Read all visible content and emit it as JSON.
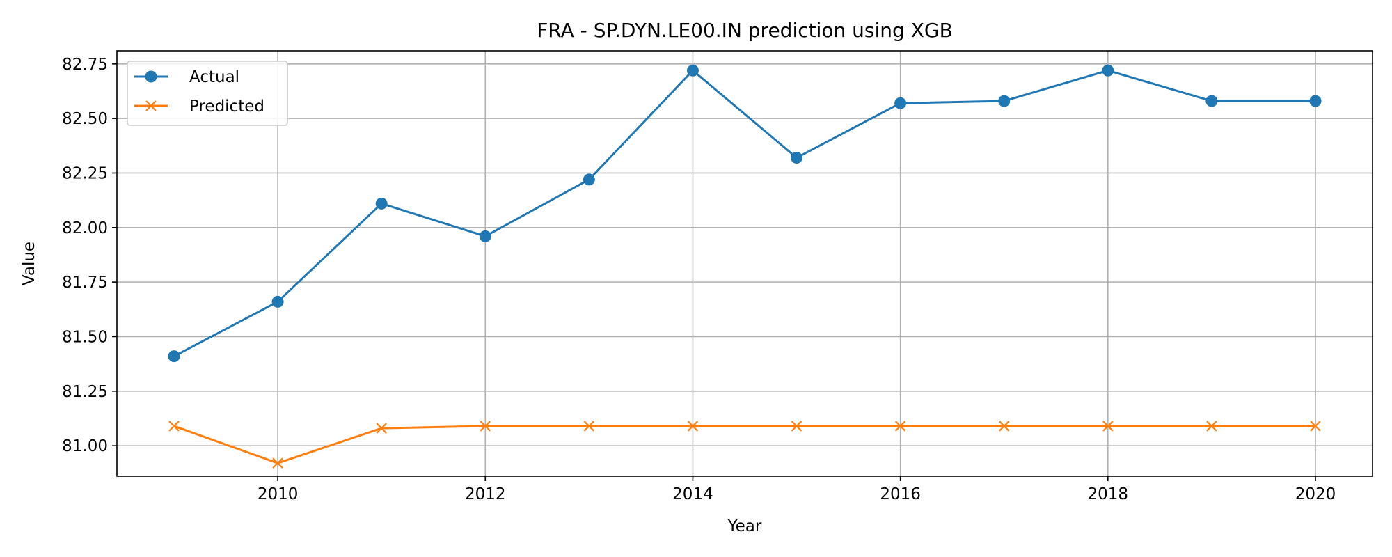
{
  "chart_data": {
    "type": "line",
    "title": "FRA - SP.DYN.LE00.IN prediction using XGB",
    "xlabel": "Year",
    "ylabel": "Value",
    "x": [
      2009,
      2010,
      2011,
      2012,
      2013,
      2014,
      2015,
      2016,
      2017,
      2018,
      2019,
      2020
    ],
    "xlim": [
      2008.45,
      2020.55
    ],
    "ylim": [
      80.86,
      82.81
    ],
    "xticks": [
      2010,
      2012,
      2014,
      2016,
      2018,
      2020
    ],
    "xtick_labels": [
      "2010",
      "2012",
      "2014",
      "2016",
      "2018",
      "2020"
    ],
    "yticks": [
      81.0,
      81.25,
      81.5,
      81.75,
      82.0,
      82.25,
      82.5,
      82.75
    ],
    "ytick_labels": [
      "81.00",
      "81.25",
      "81.50",
      "81.75",
      "82.00",
      "82.25",
      "82.50",
      "82.75"
    ],
    "grid": true,
    "legend_position": "top-left",
    "series": [
      {
        "name": "Actual",
        "color": "#1f77b4",
        "marker": "circle",
        "values": [
          81.41,
          81.66,
          82.11,
          81.96,
          82.22,
          82.72,
          82.32,
          82.57,
          82.58,
          82.72,
          82.58,
          82.58
        ]
      },
      {
        "name": "Predicted",
        "color": "#ff7f0e",
        "marker": "x",
        "values": [
          81.09,
          80.92,
          81.08,
          81.09,
          81.09,
          81.09,
          81.09,
          81.09,
          81.09,
          81.09,
          81.09,
          81.09
        ]
      }
    ]
  }
}
